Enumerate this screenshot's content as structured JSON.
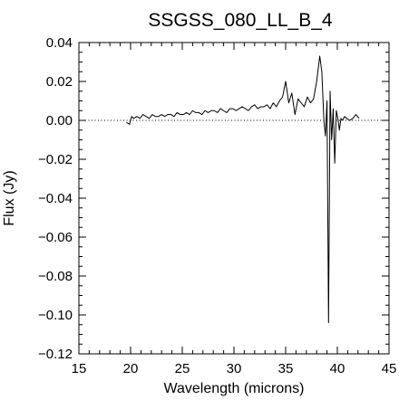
{
  "chart_data": {
    "type": "line",
    "title": "SSGSS_080_LL_B_4",
    "xlabel": "Wavelength (microns)",
    "ylabel": "Flux (Jy)",
    "xlim": [
      15,
      45
    ],
    "ylim": [
      -0.12,
      0.04
    ],
    "x_ticks": [
      "15",
      "20",
      "25",
      "30",
      "35",
      "40",
      "45"
    ],
    "y_ticks": [
      "0.04",
      "0.02",
      "0.00",
      "−0.02",
      "−0.04",
      "−0.06",
      "−0.08",
      "−0.10",
      "−0.12"
    ],
    "x_tick_values": [
      15,
      20,
      25,
      30,
      35,
      40,
      45
    ],
    "y_tick_values": [
      0.04,
      0.02,
      0.0,
      -0.02,
      -0.04,
      -0.06,
      -0.08,
      -0.1,
      -0.12
    ],
    "reference_line": {
      "y": 0.0,
      "style": "dotted"
    },
    "grid": false,
    "series": [
      {
        "x": [
          19.6,
          19.9,
          20.1,
          20.3,
          20.6,
          20.9,
          21.2,
          21.5,
          21.8,
          22.1,
          22.4,
          22.7,
          23.0,
          23.3,
          23.6,
          23.9,
          24.2,
          24.5,
          24.8,
          25.1,
          25.4,
          25.7,
          26.0,
          26.3,
          26.6,
          26.9,
          27.2,
          27.5,
          27.8,
          28.1,
          28.4,
          28.7,
          29.0,
          29.3,
          29.6,
          29.9,
          30.2,
          30.5,
          30.8,
          31.1,
          31.4,
          31.7,
          32.0,
          32.3,
          32.6,
          32.9,
          33.2,
          33.5,
          33.8,
          34.1,
          34.4,
          34.7,
          35.0,
          35.3,
          35.6,
          35.9,
          36.2,
          36.5,
          36.8,
          37.1,
          37.4,
          37.7,
          38.0,
          38.3,
          38.5,
          38.7,
          38.85,
          39.0,
          39.15,
          39.3,
          39.45,
          39.6,
          39.75,
          39.9,
          40.05,
          40.2,
          40.35,
          40.5,
          40.7,
          40.9,
          41.2,
          41.5,
          41.8,
          42.1
        ],
        "y": [
          -0.001,
          -0.002,
          0.002,
          0.001,
          0.002,
          0.001,
          0.003,
          0.002,
          0.001,
          0.003,
          0.002,
          0.002,
          0.003,
          0.002,
          0.003,
          0.003,
          0.002,
          0.004,
          0.003,
          0.003,
          0.004,
          0.003,
          0.005,
          0.004,
          0.004,
          0.003,
          0.005,
          0.004,
          0.005,
          0.005,
          0.004,
          0.006,
          0.005,
          0.004,
          0.006,
          0.006,
          0.005,
          0.006,
          0.007,
          0.006,
          0.005,
          0.007,
          0.008,
          0.006,
          0.007,
          0.007,
          0.008,
          0.006,
          0.009,
          0.007,
          0.01,
          0.012,
          0.02,
          0.009,
          0.014,
          0.003,
          0.011,
          0.009,
          0.007,
          0.012,
          0.009,
          0.011,
          0.02,
          0.033,
          0.025,
          0.0,
          -0.008,
          0.01,
          -0.104,
          0.015,
          -0.01,
          0.006,
          -0.022,
          0.005,
          0.001,
          -0.005,
          0.001,
          0.0,
          0.002,
          0.001,
          0.0,
          0.001,
          0.003,
          0.001
        ]
      }
    ]
  }
}
